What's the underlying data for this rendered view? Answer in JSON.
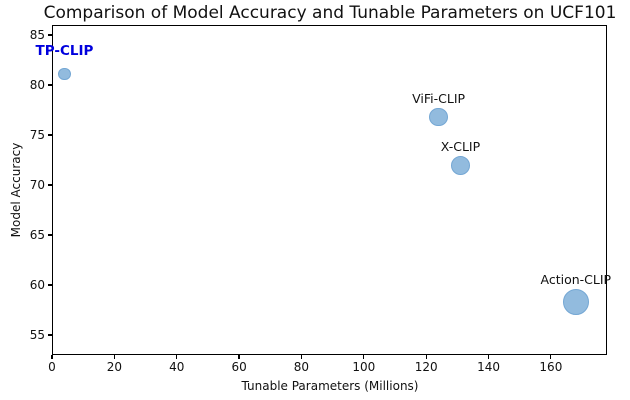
{
  "chart_data": {
    "type": "scatter",
    "title": "Comparison of Model Accuracy and Tunable Parameters on UCF101",
    "xlabel": "Tunable Parameters (Millions)",
    "ylabel": "Model Accuracy",
    "xlim": [
      0,
      178
    ],
    "ylim": [
      53,
      86
    ],
    "x_ticks": [
      0,
      20,
      40,
      60,
      80,
      100,
      120,
      140,
      160
    ],
    "y_ticks": [
      55,
      60,
      65,
      70,
      75,
      80,
      85
    ],
    "grid": false,
    "legend": "none",
    "marker_fill": "#92bbde",
    "marker_edge": "#74a7d4",
    "points": [
      {
        "model": "TP-CLIP",
        "tunable_params_millions": 4,
        "accuracy": 81.1,
        "radius_px": 6.3,
        "label_color": "#0000dd",
        "label_bold": true,
        "label_dy": -7
      },
      {
        "model": "ViFi-CLIP",
        "tunable_params_millions": 124,
        "accuracy": 76.8,
        "radius_px": 9.2,
        "label_color": "#111111",
        "label_bold": false,
        "label_dy": 0
      },
      {
        "model": "X-CLIP",
        "tunable_params_millions": 131,
        "accuracy": 72.0,
        "radius_px": 9.5,
        "label_color": "#111111",
        "label_bold": false,
        "label_dy": 0
      },
      {
        "model": "Action-CLIP",
        "tunable_params_millions": 168,
        "accuracy": 58.3,
        "radius_px": 13.3,
        "label_color": "#111111",
        "label_bold": false,
        "label_dy": 0
      }
    ]
  }
}
